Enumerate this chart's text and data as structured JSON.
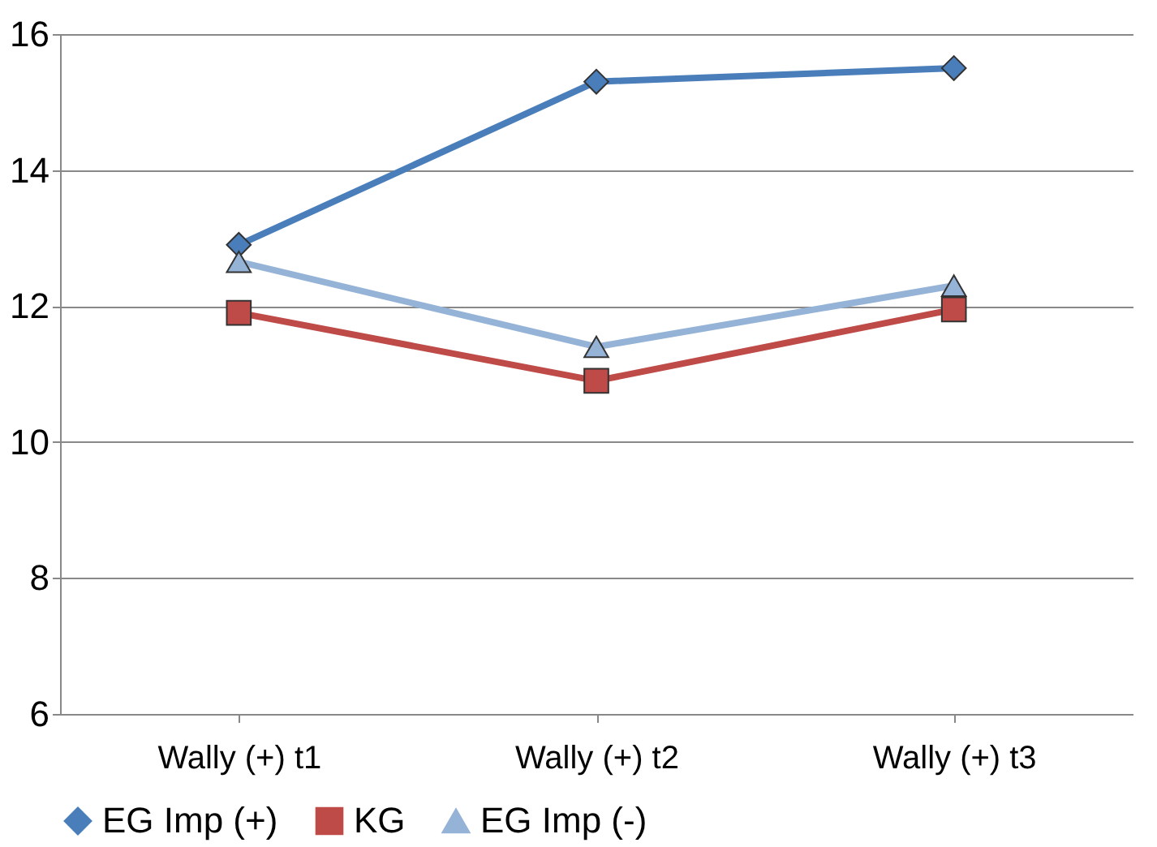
{
  "chart_data": {
    "type": "line",
    "categories": [
      "Wally (+) t1",
      "Wally (+) t2",
      "Wally (+) t3"
    ],
    "series": [
      {
        "name": "EG Imp (+)",
        "color": "#4a7ebb",
        "marker": "diamond",
        "values": [
          12.9,
          15.3,
          15.5
        ]
      },
      {
        "name": "KG",
        "color": "#be4b48",
        "marker": "square",
        "values": [
          11.9,
          10.9,
          11.95
        ]
      },
      {
        "name": "EG Imp (-)",
        "color": "#95b3d7",
        "marker": "triangle",
        "values": [
          12.65,
          11.4,
          12.3
        ]
      }
    ],
    "ylim": [
      6,
      16
    ],
    "yticks": [
      6,
      8,
      10,
      12,
      14,
      16
    ],
    "grid": "y",
    "legend": "bottom",
    "line_style": "solid"
  }
}
